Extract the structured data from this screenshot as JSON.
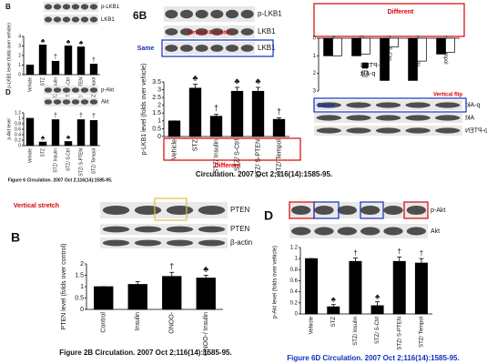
{
  "chart_data": [
    {
      "type": "bar",
      "panel": "B",
      "ylabel": "p-LKB1 level (folds over vehicle)",
      "blots": [
        "p-LKB1",
        "LKB1"
      ],
      "categories": [
        "Vehicle",
        "STZ",
        "STZ/ Insulin",
        "STZ/ S-Ctrl",
        "STZ/ S-PTEN",
        "STZ/ Tempol"
      ],
      "values": [
        1,
        3.1,
        1.4,
        3.0,
        2.9,
        1.1
      ],
      "markers": [
        null,
        "♣",
        "†",
        "♣",
        "♣",
        "†"
      ],
      "color": "#000000",
      "ylim": [
        0,
        4
      ],
      "yticks": [
        0,
        1,
        2,
        3,
        4
      ]
    },
    {
      "type": "bar",
      "panel": "D",
      "ylabel": "p-Akt level",
      "blots": [
        "p-Akt",
        "Akt"
      ],
      "categories": [
        "Vehicle",
        "STZ",
        "STZ/ Insulin",
        "STZ/ S-Ctrl",
        "STZ/ S-PTEN",
        "STZ/ Tempol"
      ],
      "values": [
        1,
        0.13,
        0.95,
        0.15,
        0.95,
        0.92
      ],
      "markers": [
        null,
        "♣",
        "†",
        "♣",
        "†",
        "†"
      ],
      "color": "#000000",
      "ylim": [
        0,
        1.2
      ],
      "yticks": [
        0,
        0.2,
        0.4,
        0.6,
        0.8,
        1,
        1.2
      ],
      "caption": "Figure 6 Circulation. 2007 Oct 2;116(14):1585-95."
    },
    {
      "type": "bar",
      "panel": "6B",
      "ylabel": "p-LKB1 level (folds over vehicle)",
      "blots": [
        "p-LKB1",
        "LKB1",
        "LKB1"
      ],
      "categories": [
        "Vehicle",
        "STZ",
        "STZ/ Insulin",
        "STZ/ S-Ctrl",
        "STZ/ S-PTEN",
        "STZ/ Tempol"
      ],
      "values": [
        1,
        3.1,
        1.3,
        2.9,
        2.9,
        1.1
      ],
      "errors": [
        0,
        0.25,
        0.12,
        0.25,
        0.25,
        0.1
      ],
      "markers": [
        null,
        "♣",
        "†",
        "♣",
        "♣",
        "†"
      ],
      "color": "#000000",
      "ylim": [
        0,
        3.5
      ],
      "yticks": [
        0,
        0.5,
        1,
        1.5,
        2,
        2.5,
        3,
        3.5
      ],
      "notes": [
        "Vertical ⇩ stretch",
        "Same",
        "Different"
      ],
      "caption": "Circulation. 2007 Oct 2;116(14):1585-95."
    },
    {
      "type": "bar",
      "panel": "5A",
      "blots": [
        "p-Akt",
        "Akt",
        "p-PTEN"
      ],
      "categories": [
        "NG",
        "OG",
        "HG/ S-Ctrl",
        "HG/ S-PTEN",
        "HG/ Tempol"
      ],
      "series": [
        {
          "name": "p-PTEN",
          "color": "#000000",
          "values": [
            1,
            1.0,
            2.4,
            2.4,
            0.9
          ]
        },
        {
          "name": "p-Akt",
          "color": "#ffffff",
          "values": [
            1,
            0.9,
            0.5,
            1.3,
            0.8
          ]
        }
      ],
      "ylim": [
        0,
        3
      ],
      "yticks": [
        0,
        1,
        2,
        3
      ],
      "flipped": true,
      "notes": [
        "Different",
        "Same",
        "Vertical flip"
      ]
    },
    {
      "type": "bar",
      "panel": "B",
      "ylabel": "PTEN level (folds over control)",
      "blots": [
        "PTEN",
        "PTEN",
        "β-actin"
      ],
      "categories": [
        "Control",
        "Insulin",
        "ONOO-",
        "ONOO-/ Insulin"
      ],
      "values": [
        1,
        1.1,
        1.45,
        1.38
      ],
      "errors": [
        0,
        0.12,
        0.18,
        0.12
      ],
      "markers": [
        null,
        null,
        "†",
        "♣"
      ],
      "color": "#000000",
      "ylim": [
        0,
        2
      ],
      "yticks": [
        0,
        0.5,
        1,
        1.5,
        2
      ],
      "notes": [
        "Vertical stretch"
      ],
      "caption": "Figure 2B Circulation. 2007 Oct 2;116(14):1585-95."
    },
    {
      "type": "bar",
      "panel": "D",
      "ylabel": "p-Akt level (folds over vehicle)",
      "blots": [
        "p-Akt",
        "Akt"
      ],
      "categories": [
        "Vehicle",
        "STZ",
        "STZ/ insulin",
        "STZ/ S-Ctrl",
        "STZ/ S-PTEN",
        "STZ/ Tempol"
      ],
      "values": [
        1,
        0.13,
        0.95,
        0.15,
        0.95,
        0.92
      ],
      "errors": [
        0,
        0.04,
        0.06,
        0.07,
        0.08,
        0.08
      ],
      "markers": [
        null,
        "♣",
        "†",
        "♣",
        "†",
        "†"
      ],
      "color": "#000000",
      "ylim": [
        0,
        1.2
      ],
      "yticks": [
        0,
        0.2,
        0.4,
        0.6,
        0.8,
        1,
        1.2
      ],
      "caption": "Figure 6D Circulation. 2007 Oct 2;116(14):1585-95."
    }
  ]
}
